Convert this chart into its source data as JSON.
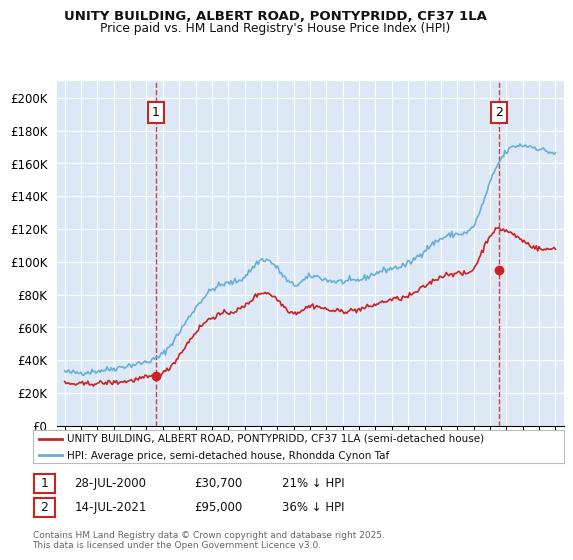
{
  "title": "UNITY BUILDING, ALBERT ROAD, PONTYPRIDD, CF37 1LA",
  "subtitle": "Price paid vs. HM Land Registry's House Price Index (HPI)",
  "legend_line1": "UNITY BUILDING, ALBERT ROAD, PONTYPRIDD, CF37 1LA (semi-detached house)",
  "legend_line2": "HPI: Average price, semi-detached house, Rhondda Cynon Taf",
  "footer": "Contains HM Land Registry data © Crown copyright and database right 2025.\nThis data is licensed under the Open Government Licence v3.0.",
  "annotation1": {
    "num": "1",
    "date": "28-JUL-2000",
    "price": "£30,700",
    "note": "21% ↓ HPI"
  },
  "annotation2": {
    "num": "2",
    "date": "14-JUL-2021",
    "price": "£95,000",
    "note": "36% ↓ HPI"
  },
  "hpi_color": "#6aaed6",
  "price_color": "#cc2222",
  "vline_color": "#cc2222",
  "background_color": "#dce8f5",
  "grid_color": "#ffffff",
  "ylim": [
    0,
    210000
  ],
  "yticks": [
    0,
    20000,
    40000,
    60000,
    80000,
    100000,
    120000,
    140000,
    160000,
    180000,
    200000
  ],
  "xlim_start": 1994.5,
  "xlim_end": 2025.5,
  "hpi_key_years": [
    1995,
    1996,
    1997,
    1998,
    1999,
    2000,
    2001,
    2002,
    2003,
    2004,
    2005,
    2006,
    2007,
    2008,
    2009,
    2010,
    2011,
    2012,
    2013,
    2014,
    2015,
    2016,
    2017,
    2018,
    2019,
    2020,
    2021,
    2022,
    2023,
    2024,
    2025
  ],
  "hpi_key_vals": [
    33000,
    32500,
    33500,
    35000,
    37000,
    39000,
    44000,
    57000,
    72000,
    83000,
    87000,
    91000,
    101000,
    96000,
    86000,
    91000,
    89000,
    88000,
    89000,
    93000,
    96000,
    99000,
    107000,
    114000,
    117000,
    122000,
    148000,
    167000,
    171000,
    169000,
    166000
  ],
  "price_key_years": [
    1995,
    1996,
    1997,
    1998,
    1999,
    2000,
    2001,
    2002,
    2003,
    2004,
    2005,
    2006,
    2007,
    2008,
    2009,
    2010,
    2011,
    2012,
    2013,
    2014,
    2015,
    2016,
    2017,
    2018,
    2019,
    2020,
    2021,
    2022,
    2023,
    2024,
    2025
  ],
  "price_key_vals": [
    26000,
    25500,
    26000,
    26500,
    27500,
    29500,
    32000,
    43000,
    57000,
    66000,
    69000,
    73000,
    81000,
    77000,
    69000,
    73000,
    71000,
    70000,
    71000,
    74000,
    77000,
    79000,
    85000,
    91000,
    93000,
    96000,
    116000,
    119000,
    113000,
    108000,
    109000
  ],
  "purchase1_x": 2000.57,
  "purchase1_y": 30700,
  "purchase2_x": 2021.54,
  "purchase2_y": 95000
}
